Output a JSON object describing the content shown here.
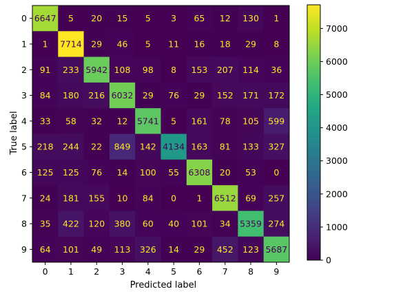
{
  "chart_data": {
    "type": "heatmap",
    "title": "",
    "xlabel": "Predicted label",
    "ylabel": "True label",
    "x_categories": [
      "0",
      "1",
      "2",
      "3",
      "4",
      "5",
      "6",
      "7",
      "8",
      "9"
    ],
    "y_categories": [
      "0",
      "1",
      "2",
      "3",
      "4",
      "5",
      "6",
      "7",
      "8",
      "9"
    ],
    "values": [
      [
        6647,
        5,
        20,
        15,
        5,
        3,
        65,
        12,
        130,
        1
      ],
      [
        1,
        7714,
        29,
        46,
        5,
        11,
        16,
        18,
        29,
        8
      ],
      [
        91,
        233,
        5942,
        108,
        98,
        8,
        153,
        207,
        114,
        36
      ],
      [
        84,
        180,
        216,
        6032,
        29,
        76,
        29,
        152,
        171,
        172
      ],
      [
        33,
        58,
        32,
        12,
        5741,
        5,
        161,
        78,
        105,
        599
      ],
      [
        218,
        244,
        22,
        849,
        142,
        4134,
        163,
        81,
        133,
        327
      ],
      [
        125,
        125,
        76,
        14,
        100,
        55,
        6308,
        20,
        53,
        0
      ],
      [
        24,
        181,
        155,
        10,
        84,
        0,
        1,
        6512,
        69,
        257
      ],
      [
        35,
        422,
        120,
        380,
        60,
        40,
        101,
        34,
        5359,
        274
      ],
      [
        64,
        101,
        49,
        113,
        326,
        14,
        29,
        452,
        123,
        5687
      ]
    ],
    "colormap": "viridis",
    "color_range": [
      0,
      7714
    ],
    "colorbar_ticks": [
      "0",
      "1000",
      "2000",
      "3000",
      "4000",
      "5000",
      "6000",
      "7000"
    ],
    "text_color_light": "#fde725",
    "text_color_dark": "#440154"
  }
}
